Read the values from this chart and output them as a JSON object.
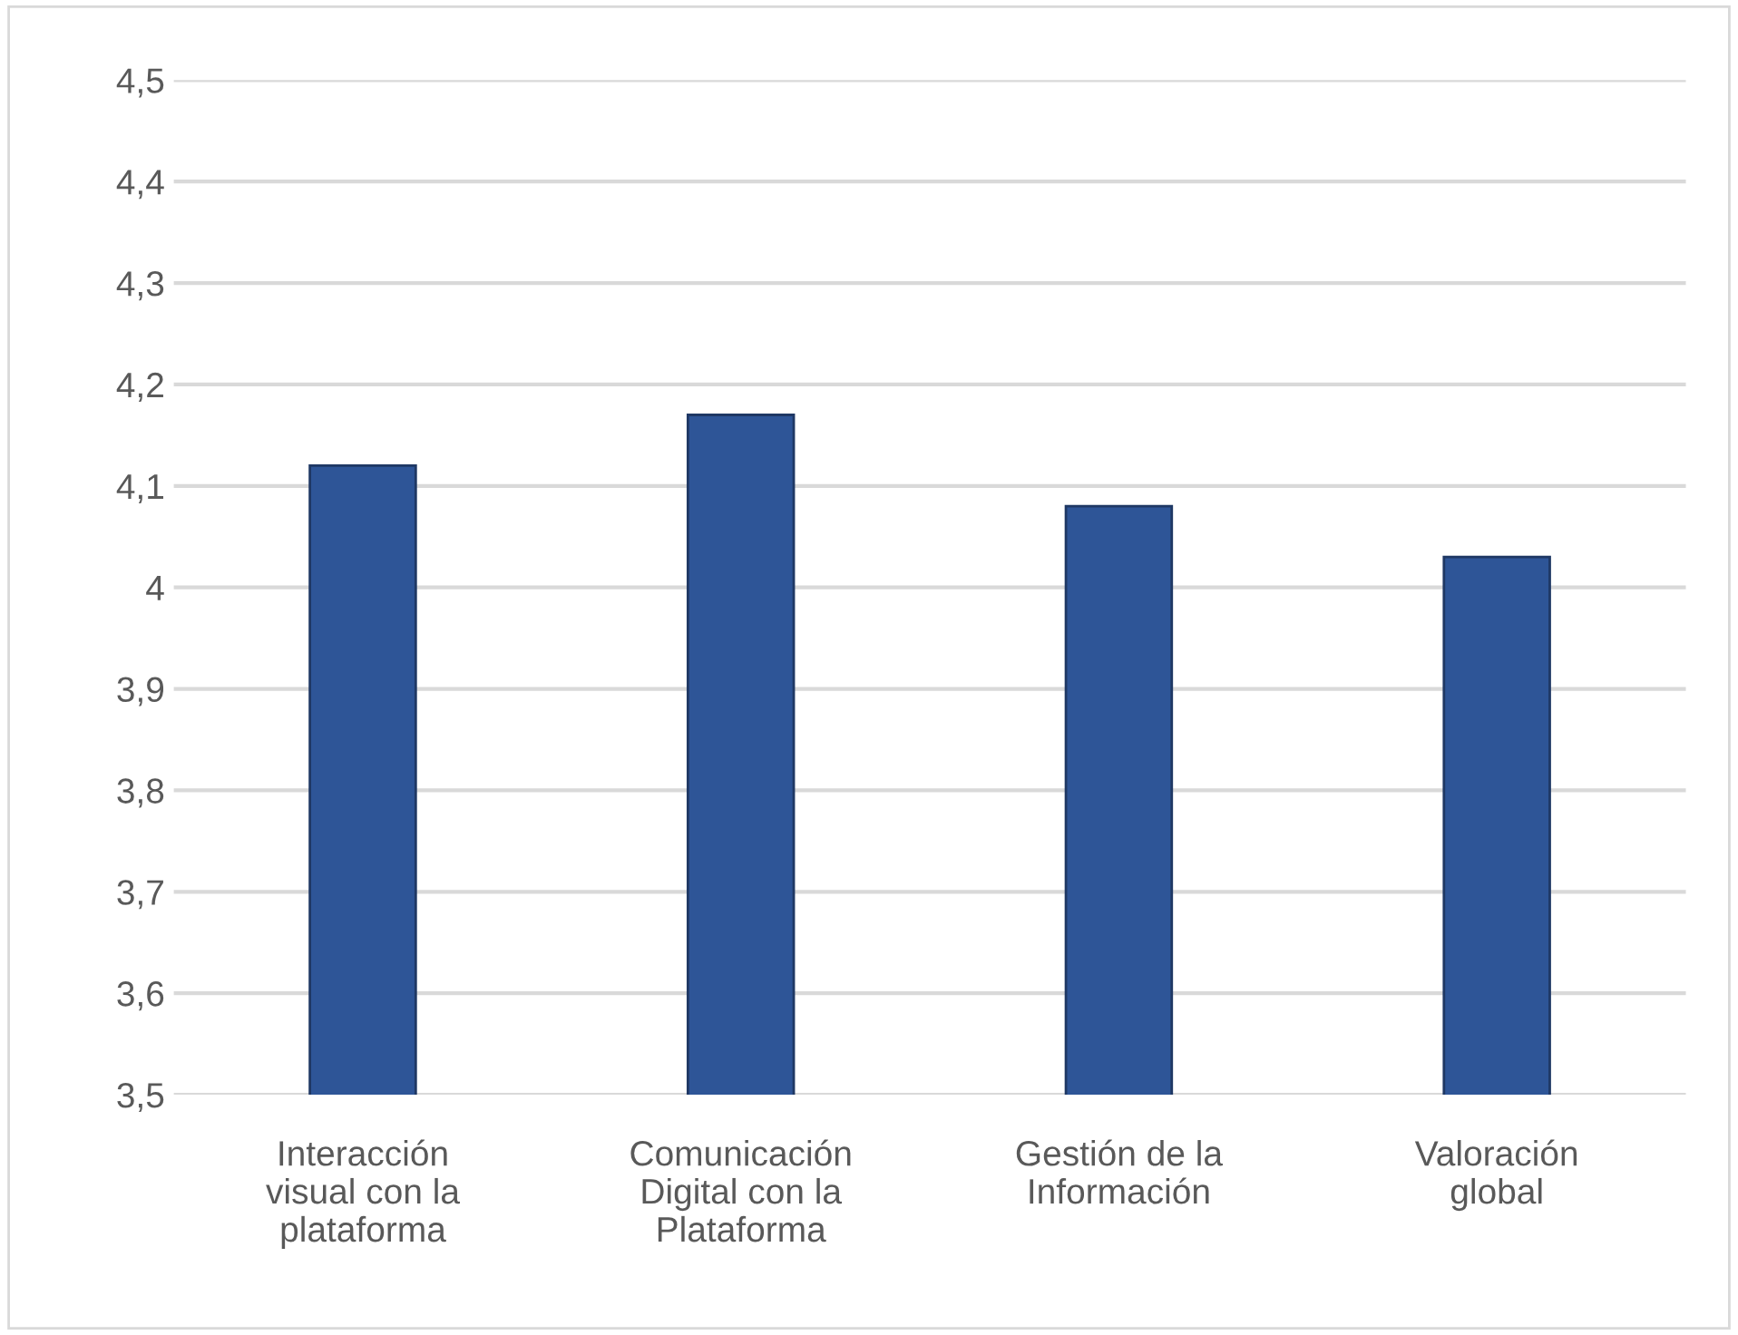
{
  "chart_data": {
    "type": "bar",
    "categories": [
      "Interacción visual con la plataforma",
      "Comunicación Digital con la Plataforma",
      "Gestión de la Información",
      "Valoración global"
    ],
    "values": [
      4.12,
      4.17,
      4.08,
      4.03
    ],
    "color": "#2e5597",
    "ylim": [
      3.5,
      4.5
    ],
    "yticks": [
      {
        "value": 3.5,
        "label": "3,5"
      },
      {
        "value": 3.6,
        "label": "3,6"
      },
      {
        "value": 3.7,
        "label": "3,7"
      },
      {
        "value": 3.8,
        "label": "3,8"
      },
      {
        "value": 3.9,
        "label": "3,9"
      },
      4,
      {
        "value": 4.1,
        "label": "4,1"
      },
      {
        "value": 4.2,
        "label": "4,2"
      },
      {
        "value": 4.3,
        "label": "4,3"
      },
      {
        "value": 4.4,
        "label": "4,4"
      },
      {
        "value": 4.5,
        "label": "4,5"
      }
    ],
    "grid": "y"
  }
}
